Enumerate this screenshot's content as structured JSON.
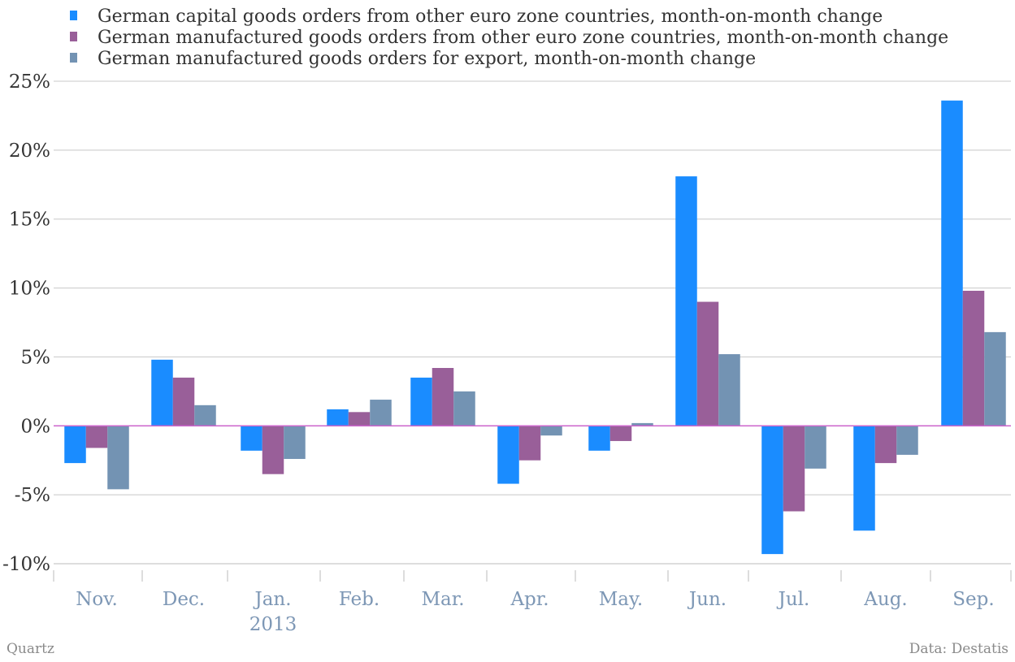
{
  "chart_data": {
    "type": "bar",
    "categories": [
      "Nov.",
      "Dec.",
      "Jan.\n2013",
      "Feb.",
      "Mar.",
      "Apr.",
      "May.",
      "Jun.",
      "Jul.",
      "Aug.",
      "Sep."
    ],
    "series": [
      {
        "name": "German capital goods orders from other euro zone countries, month-on-month change",
        "color": "#1a8cff",
        "values": [
          -2.7,
          4.8,
          -1.8,
          1.2,
          3.5,
          -4.2,
          -1.8,
          18.1,
          -9.3,
          -7.6,
          23.6
        ]
      },
      {
        "name": "German manufactured goods orders from other euro zone countries, month-on-month change",
        "color": "#995f99",
        "values": [
          -1.6,
          3.5,
          -3.5,
          1.0,
          4.2,
          -2.5,
          -1.1,
          9.0,
          -6.2,
          -2.7,
          9.8
        ]
      },
      {
        "name": "German manufactured goods orders for export, month-on-month change",
        "color": "#7393b3",
        "values": [
          -4.6,
          1.5,
          -2.4,
          1.9,
          2.5,
          -0.7,
          0.2,
          5.2,
          -3.1,
          -2.1,
          6.8
        ]
      }
    ],
    "ylim": [
      -10,
      25
    ],
    "yticks": [
      25,
      20,
      15,
      10,
      5,
      0,
      -5,
      -10
    ],
    "ytick_suffix": "%",
    "grid": true,
    "legend_position": "top-left",
    "zero_line_color": "#cc66cc"
  },
  "footer": {
    "credit": "Quartz",
    "source": "Data: Destatis"
  }
}
